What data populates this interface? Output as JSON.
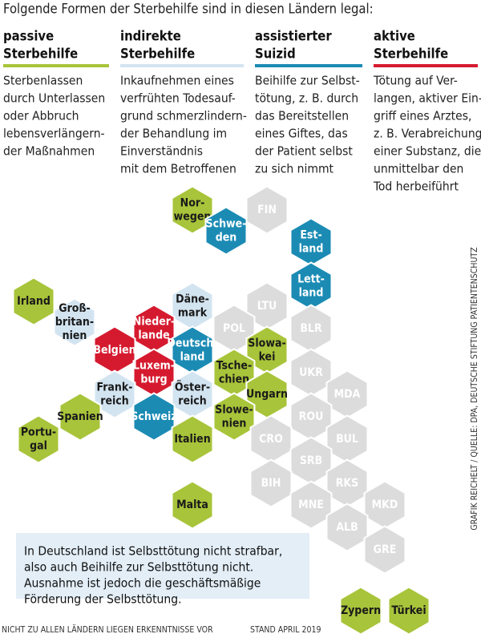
{
  "header": {
    "title": "Folgende Formen der Sterbehilfe sind in diesen Ländern legal:"
  },
  "columns": [
    {
      "heading": [
        "passive",
        "Sterbehilfe"
      ],
      "color": "#a8c43a",
      "description": [
        "Sterbenlassen",
        "durch Unterlassen",
        "oder Abbruch",
        "lebensverlängern-",
        "der Maßnahmen"
      ]
    },
    {
      "heading": [
        "indirekte",
        "Sterbehilfe"
      ],
      "color": "#d3e4f1",
      "description": [
        "Inkaufnehmen eines",
        "verfrühten Todesauf-",
        "grund schmerzlindern-",
        "der Behandlung im",
        "Einverständnis",
        "mit dem Betroffenen"
      ]
    },
    {
      "heading": [
        "assistierter",
        "Suizid"
      ],
      "color": "#1b8bb4",
      "description": [
        "Beihilfe zur Selbst-",
        "tötung, z. B. durch",
        "das Bereitstellen",
        "eines Giftes, das",
        "der Patient selbst",
        "zu sich nimmt"
      ]
    },
    {
      "heading": [
        "aktive",
        "Sterbehilfe"
      ],
      "color": "#d51a2f",
      "description": [
        "Tötung auf Ver-",
        "langen, aktiver Ein-",
        "griff eines Arztes,",
        "z. B. Verabreichung",
        "einer Substanz, die",
        "unmittelbar den",
        "Tod herbeiführt"
      ]
    }
  ],
  "hexes": [
    {
      "label": [
        "Nor-",
        "wegen"
      ],
      "color": "#a8c43a"
    },
    {
      "label": [
        "Schwe-",
        "den"
      ],
      "color": "#1b8bb4"
    },
    {
      "label": [
        "FIN"
      ],
      "color": "#dcdcdc"
    },
    {
      "label": [
        "Est-",
        "land"
      ],
      "color": "#1b8bb4"
    },
    {
      "label": [
        "Lett-",
        "land"
      ],
      "color": "#1b8bb4"
    },
    {
      "label": [
        "LTU"
      ],
      "color": "#dcdcdc"
    },
    {
      "label": [
        "Irland"
      ],
      "color": "#a8c43a"
    },
    {
      "label": [
        "Groß-",
        "britan-",
        "nien"
      ],
      "color": "#d3e4f1"
    },
    {
      "label": [
        "Däne-",
        "mark"
      ],
      "color": "#d3e4f1"
    },
    {
      "label": [
        "Nieder-",
        "lande"
      ],
      "color": "#d51a2f"
    },
    {
      "label": [
        "POL"
      ],
      "color": "#dcdcdc"
    },
    {
      "label": [
        "BLR"
      ],
      "color": "#dcdcdc"
    },
    {
      "label": [
        "Belgien"
      ],
      "color": "#d51a2f"
    },
    {
      "label": [
        "Deutsch-",
        "land"
      ],
      "color": "#1b8bb4"
    },
    {
      "label": [
        "Slowa-",
        "kei"
      ],
      "color": "#a8c43a"
    },
    {
      "label": [
        "Luxem-",
        "burg"
      ],
      "color": "#d51a2f"
    },
    {
      "label": [
        "Tsche-",
        "chien"
      ],
      "color": "#a8c43a"
    },
    {
      "label": [
        "UKR"
      ],
      "color": "#dcdcdc"
    },
    {
      "label": [
        "Frank-",
        "reich"
      ],
      "color": "#d3e4f1"
    },
    {
      "label": [
        "Öster-",
        "reich"
      ],
      "color": "#d3e4f1"
    },
    {
      "label": [
        "Ungarn"
      ],
      "color": "#a8c43a"
    },
    {
      "label": [
        "MDA"
      ],
      "color": "#dcdcdc"
    },
    {
      "label": [
        "Schweiz"
      ],
      "color": "#1b8bb4"
    },
    {
      "label": [
        "Slowe-",
        "nien"
      ],
      "color": "#a8c43a"
    },
    {
      "label": [
        "ROU"
      ],
      "color": "#dcdcdc"
    },
    {
      "label": [
        "Spanien"
      ],
      "color": "#a8c43a"
    },
    {
      "label": [
        "Portu-",
        "gal"
      ],
      "color": "#a8c43a"
    },
    {
      "label": [
        "Italien"
      ],
      "color": "#a8c43a"
    },
    {
      "label": [
        "CRO"
      ],
      "color": "#dcdcdc"
    },
    {
      "label": [
        "BUL"
      ],
      "color": "#dcdcdc"
    },
    {
      "label": [
        "SRB"
      ],
      "color": "#dcdcdc"
    },
    {
      "label": [
        "BIH"
      ],
      "color": "#dcdcdc"
    },
    {
      "label": [
        "RKS"
      ],
      "color": "#dcdcdc"
    },
    {
      "label": [
        "MNE"
      ],
      "color": "#dcdcdc"
    },
    {
      "label": [
        "MKD"
      ],
      "color": "#dcdcdc"
    },
    {
      "label": [
        "Malta"
      ],
      "color": "#a8c43a"
    },
    {
      "label": [
        "ALB"
      ],
      "color": "#dcdcdc"
    },
    {
      "label": [
        "GRE"
      ],
      "color": "#dcdcdc"
    },
    {
      "label": [
        "Zypern"
      ],
      "color": "#a8c43a"
    },
    {
      "label": [
        "Türkei"
      ],
      "color": "#a8c43a"
    }
  ],
  "note": [
    "In Deutschland ist Selbsttötung nicht strafbar,",
    "also auch Beihilfe zur Selbsttötung nicht.",
    "Ausnahme ist jedoch die geschäftsmäßige",
    "Förderung der Selbsttötung."
  ],
  "footnote": "NICHT ZU ALLEN LÄNDERN LIEGEN ERKENNTNISSE VOR",
  "date": "STAND APRIL 2019",
  "credit": "GRAFIK REICHELT / QUELLE: DPA, DEUTSCHE STIFTUNG PATIENTENSCHUTZ"
}
